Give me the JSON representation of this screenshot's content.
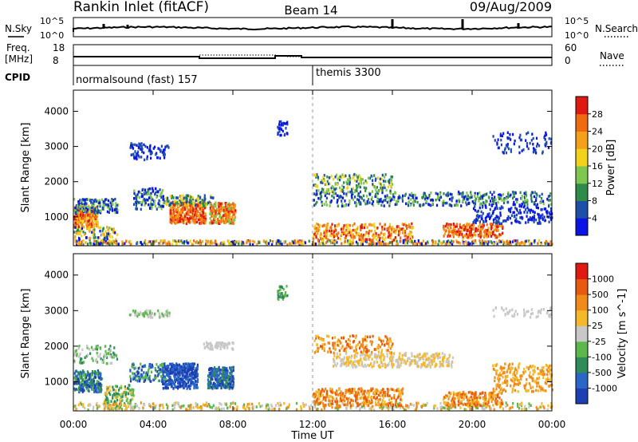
{
  "header": {
    "station": "Rankin Inlet (fitACF)",
    "beam": "Beam 14",
    "date": "09/Aug/2009"
  },
  "noise_panel": {
    "left_label": "N.Sky",
    "left_ticks": [
      "10^5",
      "10^0"
    ],
    "right_label": "N.Search",
    "right_ticks": [
      "10^5",
      "10^0"
    ]
  },
  "freq_panel": {
    "left_label_1": "Freq.",
    "left_label_2": "[MHz]",
    "left_ticks": [
      "18",
      "8"
    ],
    "right_label": "Nave",
    "right_ticks": [
      "60",
      "0"
    ]
  },
  "cpid": {
    "label": "CPID",
    "programs": [
      {
        "name": "normalsound (fast) 157",
        "start_hour": 0
      },
      {
        "name": "themis 3300",
        "start_hour": 12
      }
    ]
  },
  "chart_data": [
    {
      "type": "heatmap",
      "name": "power",
      "ylabel": "Slant Range [km]",
      "yticks": [
        1000,
        2000,
        3000,
        4000
      ],
      "ylim": [
        180,
        4600
      ],
      "colorbar_label": "Power [dB]",
      "colorbar_ticks": [
        "4",
        "8",
        "12",
        "16",
        "20",
        "24",
        "28"
      ],
      "colorbar_colors": [
        "#0a14e6",
        "#1e4fa8",
        "#2e8b4a",
        "#7ec850",
        "#f2d21a",
        "#f5a019",
        "#f06a10",
        "#e01a10"
      ]
    },
    {
      "type": "heatmap",
      "name": "velocity",
      "ylabel": "Slant Range [km]",
      "yticks": [
        1000,
        2000,
        3000,
        4000
      ],
      "ylim": [
        180,
        4600
      ],
      "colorbar_label": "Velocity [m s^-1]",
      "colorbar_ticks": [
        "1000",
        "500",
        "100",
        "25",
        "-25",
        "-100",
        "-500",
        "-1000"
      ],
      "colorbar_colors": [
        "#1c3fb4",
        "#2a66c8",
        "#2e8b5a",
        "#5cb84c",
        "#c8c8c8",
        "#f5b828",
        "#f08a18",
        "#e85a10",
        "#e01a10"
      ]
    }
  ],
  "time_axis": {
    "label": "Time UT",
    "ticks": [
      "00:00",
      "04:00",
      "08:00",
      "12:00",
      "16:00",
      "20:00",
      "00:00"
    ]
  }
}
